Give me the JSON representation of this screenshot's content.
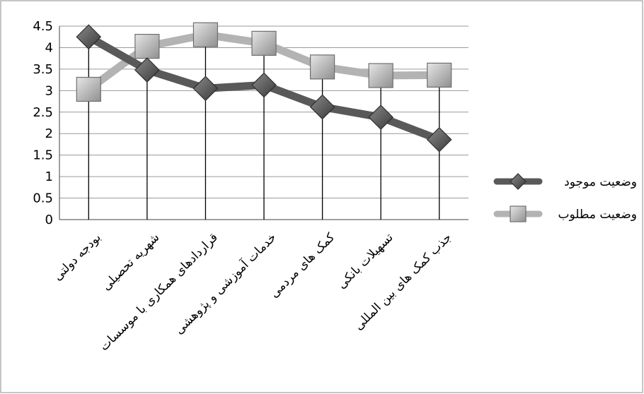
{
  "chart_data": {
    "type": "line",
    "categories": [
      "بودجه دولتی",
      "شهریه تحصیلی",
      "قراردادهای همکاری با موسسات",
      "خدمات آموزشی و پژوهشی",
      "کمک های مردمی",
      "تسهیلات بانکی",
      "جذب کمک های بین المللی"
    ],
    "series": [
      {
        "name": "وضعیت موجود",
        "values": [
          4.25,
          3.48,
          3.05,
          3.13,
          2.62,
          2.38,
          1.86
        ],
        "color": "#595959",
        "marker": "diamond"
      },
      {
        "name": "وضعیت مطلوب",
        "values": [
          3.03,
          4.03,
          4.3,
          4.1,
          3.55,
          3.35,
          3.36
        ],
        "color": "#b3b3b3",
        "marker": "square"
      }
    ],
    "yticks": [
      "0",
      "0.5",
      "1",
      "1.5",
      "2",
      "2.5",
      "3",
      "3.5",
      "4",
      "4.5"
    ],
    "ylim": [
      0,
      4.5
    ],
    "title": "",
    "xlabel": "",
    "ylabel": "",
    "grid": "horizontal",
    "drop_lines": true,
    "legend_position": "right"
  }
}
